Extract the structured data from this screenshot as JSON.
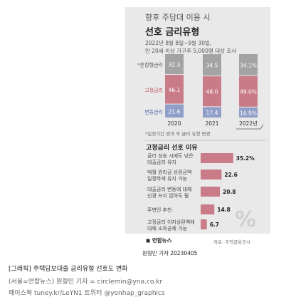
{
  "chart_data": [
    {
      "type": "bar",
      "stacked": true,
      "title": "선호 금리유형",
      "subtitle": "향후 주담대 이용 시",
      "note": [
        "2022년 8월 8일~9월 30일,",
        "만 20세 이상 가구주 5,000명 대상 조사"
      ],
      "categories": [
        "2020",
        "2021",
        "2022년"
      ],
      "series": [
        {
          "name": "변동금리",
          "values": [
            21.6,
            17.4,
            16.9
          ],
          "labels": [
            "21.6",
            "17.4",
            "16.9%"
          ],
          "color": "#8f9fc7"
        },
        {
          "name": "고정금리",
          "values": [
            46.1,
            48.0,
            49.0
          ],
          "labels": [
            "46.1",
            "48.0",
            "49.0%"
          ],
          "color": "#c97b88"
        },
        {
          "name": "*혼합형금리",
          "values": [
            32.3,
            34.5,
            34.1
          ],
          "labels": [
            "32.3",
            "34.5",
            "34.1%"
          ],
          "color": "#a3a3a3"
        }
      ],
      "footnote": "*일정기간 경과 후 금리 유형 변경"
    },
    {
      "type": "bar",
      "orientation": "horizontal",
      "title": "고정금리 선호 이유",
      "color": "#c97b88",
      "items": [
        {
          "label": [
            "금리 상승 시에도 낮은",
            "대출금리 유지"
          ],
          "value": 35.2,
          "text": "35.2%"
        },
        {
          "label": [
            "매월 원리금 상환금액",
            "일정하게 유지 가능"
          ],
          "value": 22.6,
          "text": "22.6"
        },
        {
          "label": [
            "대출금리 변동에 대해",
            "신경 쓰지 않아도 됨"
          ],
          "value": 20.8,
          "text": "20.8"
        },
        {
          "label": [
            "주변인 추천"
          ],
          "value": 14.8,
          "text": "14.8"
        },
        {
          "label": [
            "고정금리 이자상환액에",
            "대해 소득공제 가능"
          ],
          "value": 6.7,
          "text": "6.7"
        }
      ]
    }
  ],
  "source": "자료: 주택금융공사",
  "logo": "연합뉴스",
  "byline": "원형민 기자 20230405",
  "caption": {
    "line1": "[그래픽] 주택담보대출 금리유형 선호도 변화",
    "line2": "(서울=연합뉴스) 원형민 기자 = circlemin@yna.co.kr",
    "line3": "페이스북 tuney.kr/LeYN1 트위터 @yonhap_graphics"
  }
}
